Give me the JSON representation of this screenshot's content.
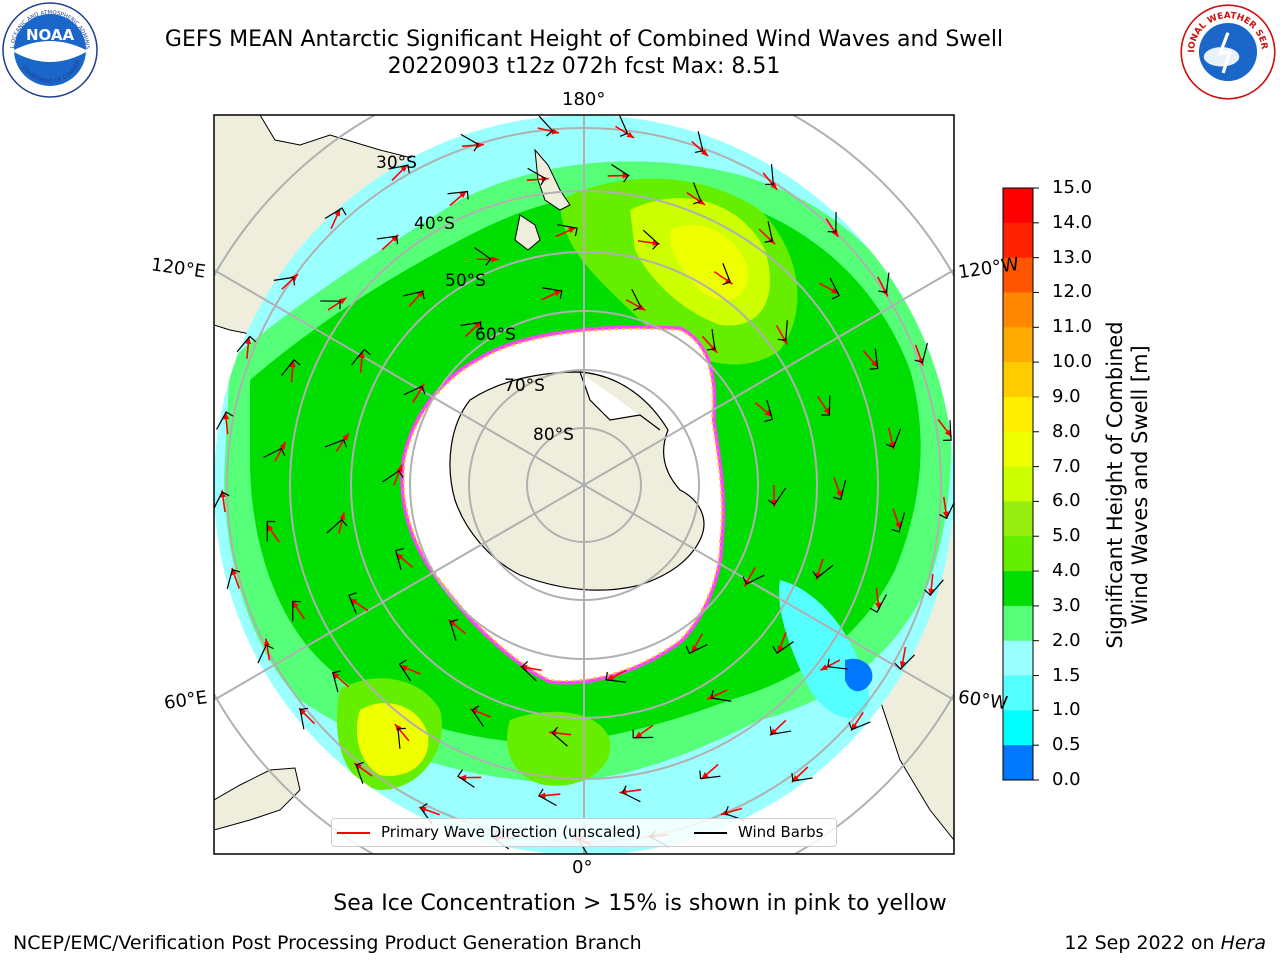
{
  "title_line1": "GEFS MEAN Antarctic Significant Height of Combined Wind Waves and Swell",
  "title_line2": "20220903 t12z 072h fcst   Max: 8.51",
  "colorbar": {
    "label_line1": "Significant Height of Combined",
    "label_line2": "Wind Waves and Swell [m]",
    "ticks": [
      "15.0",
      "14.0",
      "13.0",
      "12.0",
      "11.0",
      "10.0",
      "9.0",
      "8.0",
      "7.0",
      "6.0",
      "5.0",
      "4.0",
      "3.0",
      "2.0",
      "1.5",
      "1.0",
      "0.5",
      "0.0"
    ],
    "colors": [
      "#ff0000",
      "#ff2200",
      "#ff5500",
      "#ff8800",
      "#ffaa00",
      "#ffcc00",
      "#ffee00",
      "#eeff00",
      "#ccff00",
      "#99ee11",
      "#66ee00",
      "#00dd00",
      "#55ff77",
      "#99ffff",
      "#55ffff",
      "#00ffff",
      "#0077ff",
      "#0000ff"
    ]
  },
  "lon_labels": {
    "top": "180°",
    "bottom": "0°",
    "left_upper": "120°E",
    "right_upper": "120°W",
    "left_lower": "60°E",
    "right_lower": "60°W"
  },
  "lat_labels": [
    "30°S",
    "40°S",
    "50°S",
    "60°S",
    "70°S",
    "80°S"
  ],
  "legend": {
    "wave_label": "Primary Wave Direction (unscaled)",
    "wave_color": "#ff0000",
    "barb_label": "Wind Barbs",
    "barb_color": "#000000"
  },
  "subtitle": "Sea Ice Concentration > 15% is shown in pink to yellow",
  "footer_left": "NCEP/EMC/Verification Post Processing Product Generation Branch",
  "footer_date": "12 Sep 2022 on ",
  "footer_machine": "Hera",
  "logos": {
    "noaa_text": "NOAA",
    "noaa_ring_text": "NATIONAL OCEANIC AND ATMOSPHERIC ADMINISTRATION",
    "noaa_ring_text_bottom": "U.S. DEPARTMENT OF COMMERCE",
    "nws_ring_text": "NATIONAL WEATHER SERVICE"
  }
}
